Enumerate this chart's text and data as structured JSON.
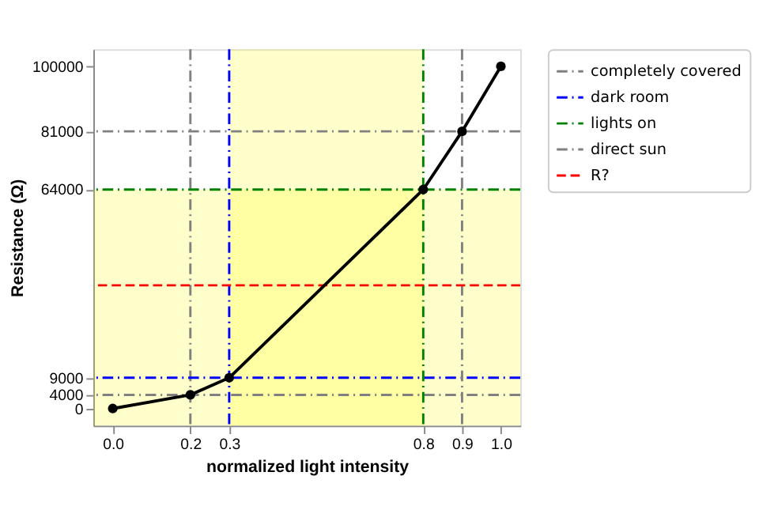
{
  "chart_data": {
    "type": "line",
    "xlabel": "normalized light intensity",
    "ylabel": "Resistance (Ω)",
    "x": [
      0,
      0.2,
      0.3,
      0.8,
      0.9,
      1.0
    ],
    "series": [
      {
        "color": "#000000",
        "values": [
          0,
          4000,
          9000,
          64000,
          81000,
          100000
        ]
      }
    ],
    "marker": "circle",
    "line_style": "solid",
    "grid": false,
    "legend": "right",
    "xlim": [
      -0.05,
      1.05
    ],
    "ylim": [
      -5000,
      105000
    ],
    "xticks": [
      {
        "value": 0,
        "label": "0.0"
      },
      0.2,
      0.3,
      0.8,
      0.9,
      {
        "value": 1,
        "label": "1.0"
      }
    ],
    "yticks": [
      0,
      4000,
      9000,
      64000,
      81000,
      100000
    ],
    "ref_lines": [
      {
        "axis": "y",
        "value": 4000,
        "label": "completely covered",
        "color": "#808080",
        "line_style": "dashdot"
      },
      {
        "axis": "x",
        "value": 0.2,
        "color": "#808080",
        "line_style": "dashdot"
      },
      {
        "axis": "y",
        "value": 9000,
        "label": "dark room",
        "color": "#0000ff",
        "line_style": "dashdot"
      },
      {
        "axis": "x",
        "value": 0.3,
        "color": "#0000ff",
        "line_style": "dashdot"
      },
      {
        "axis": "y",
        "value": 64000,
        "label": "lights on",
        "color": "#008000",
        "line_style": "dashdot"
      },
      {
        "axis": "x",
        "value": 0.8,
        "color": "#008000",
        "line_style": "dashdot"
      },
      {
        "axis": "y",
        "value": 81000,
        "label": "direct sun",
        "color": "#808080",
        "line_style": "dashdot"
      },
      {
        "axis": "x",
        "value": 0.9,
        "color": "#808080",
        "line_style": "dashdot"
      },
      {
        "axis": "y",
        "value": 36000,
        "label": "R?",
        "color": "#ff0000",
        "line_style": "dashed"
      }
    ],
    "bands": [
      {
        "axis": "x",
        "from": 0.3,
        "to": 0.8,
        "color": "#ffff00"
      },
      {
        "axis": "y",
        "from": -5000,
        "to": 64000,
        "color": "#ffff00"
      }
    ]
  }
}
